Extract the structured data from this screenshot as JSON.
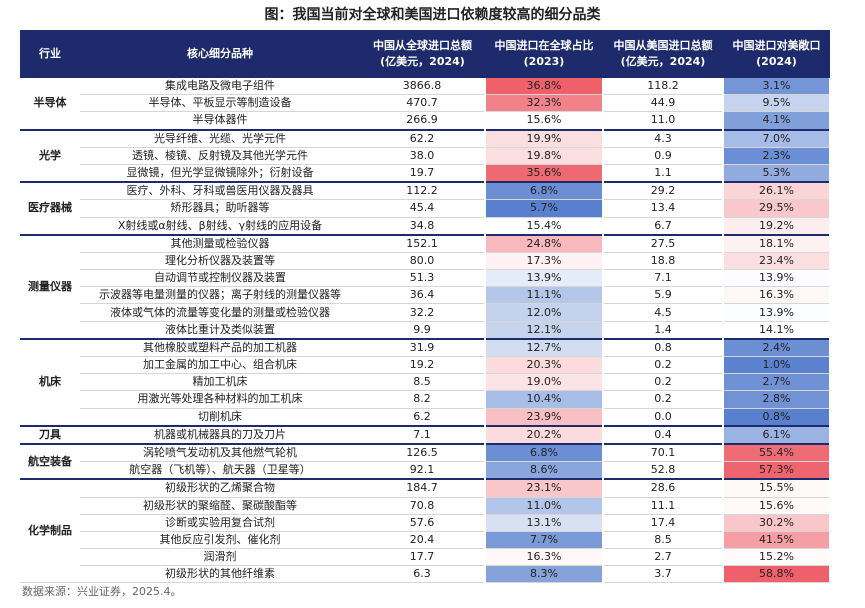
{
  "title": "图：我国当前对全球和美国进口依赖度较高的细分品类",
  "header": [
    [
      "行业"
    ],
    [
      "核心细分品种"
    ],
    [
      "中国从全球进口总额",
      "(亿美元，2024)"
    ],
    [
      "中国进口在全球占比",
      "(2023)"
    ],
    [
      "中国从美国进口总额",
      "(亿美元，2024)"
    ],
    [
      "中国进口对美敞口",
      "(2024)"
    ]
  ],
  "groups": [
    {
      "name": "半导体",
      "rows": [
        [
          "集成电路及微电子组件",
          "3866.8",
          "36.8%",
          "118.2",
          "3.1%"
        ],
        [
          "半导体、平板显示等制造设备",
          "470.7",
          "32.3%",
          "44.9",
          "9.5%"
        ],
        [
          "半导体器件",
          "266.9",
          "15.6%",
          "11.0",
          "4.1%"
        ]
      ]
    },
    {
      "name": "光学",
      "rows": [
        [
          "光导纤维、光缆、光学元件",
          "62.2",
          "19.9%",
          "4.3",
          "7.0%"
        ],
        [
          "透镜、棱镜、反射镜及其他光学元件",
          "38.0",
          "19.8%",
          "0.9",
          "2.3%"
        ],
        [
          "显微镜，但光学显微镜除外；衍射设备",
          "19.7",
          "35.6%",
          "1.1",
          "5.3%"
        ]
      ]
    },
    {
      "name": "医疗器械",
      "rows": [
        [
          "医疗、外科、牙科或兽医用仪器及器具",
          "112.2",
          "6.8%",
          "29.2",
          "26.1%"
        ],
        [
          "矫形器具；助听器等",
          "45.4",
          "5.7%",
          "13.4",
          "29.5%"
        ],
        [
          "X射线或α射线、β射线、γ射线的应用设备",
          "34.8",
          "15.4%",
          "6.7",
          "19.2%"
        ]
      ]
    },
    {
      "name": "测量仪器",
      "rows": [
        [
          "其他测量或检验仪器",
          "152.1",
          "24.8%",
          "27.5",
          "18.1%"
        ],
        [
          "理化分析仪器及装置等",
          "80.0",
          "17.3%",
          "18.8",
          "23.4%"
        ],
        [
          "自动调节或控制仪器及装置",
          "51.3",
          "13.9%",
          "7.1",
          "13.9%"
        ],
        [
          "示波器等电量测量的仪器；离子射线的测量仪器等",
          "36.4",
          "11.1%",
          "5.9",
          "16.3%"
        ],
        [
          "液体或气体的流量等变化量的测量或检验仪器",
          "32.2",
          "12.0%",
          "4.5",
          "13.9%"
        ],
        [
          "液体比重计及类似装置",
          "9.9",
          "12.1%",
          "1.4",
          "14.1%"
        ]
      ]
    },
    {
      "name": "机床",
      "rows": [
        [
          "其他橡胶或塑料产品的加工机器",
          "31.9",
          "12.7%",
          "0.8",
          "2.4%"
        ],
        [
          "加工金属的加工中心、组合机床",
          "19.2",
          "20.3%",
          "0.2",
          "1.0%"
        ],
        [
          "精加工机床",
          "8.5",
          "19.0%",
          "0.2",
          "2.7%"
        ],
        [
          "用激光等处理各种材料的加工机床",
          "8.2",
          "10.4%",
          "0.2",
          "2.8%"
        ],
        [
          "切削机床",
          "6.2",
          "23.9%",
          "0.0",
          "0.8%"
        ]
      ]
    },
    {
      "name": "刀具",
      "rows": [
        [
          "机器或机械器具的刀及刀片",
          "7.1",
          "20.2%",
          "0.4",
          "6.1%"
        ]
      ]
    },
    {
      "name": "航空装备",
      "rows": [
        [
          "涡轮喷气发动机及其他燃气轮机",
          "126.5",
          "6.8%",
          "70.1",
          "55.4%"
        ],
        [
          "航空器（飞机等）、航天器（卫星等）",
          "92.1",
          "8.6%",
          "52.8",
          "57.3%"
        ]
      ]
    },
    {
      "name": "化学制品",
      "rows": [
        [
          "初级形状的乙烯聚合物",
          "184.7",
          "23.1%",
          "28.6",
          "15.5%"
        ],
        [
          "初级形状的聚缩醛、聚碳酸酯等",
          "70.8",
          "11.0%",
          "11.1",
          "15.6%"
        ],
        [
          "诊断或实验用复合试剂",
          "57.6",
          "13.1%",
          "17.4",
          "30.2%"
        ],
        [
          "其他反应引发剂、催化剂",
          "20.4",
          "7.7%",
          "8.5",
          "41.5%"
        ],
        [
          "润滑剂",
          "17.7",
          "16.3%",
          "2.7",
          "15.2%"
        ],
        [
          "初级形状的其他纤维素",
          "6.3",
          "8.3%",
          "3.7",
          "58.8%"
        ]
      ]
    }
  ],
  "source": "数据来源：兴业证券，2025.4。"
}
